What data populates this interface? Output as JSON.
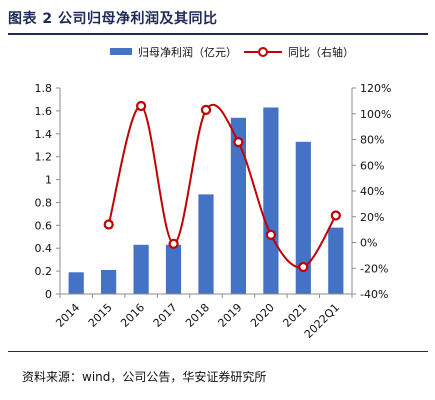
{
  "figure": {
    "title": "图表 2  公司归母净利润及其同比",
    "source": "资料来源：wind，公司公告，华安证券研究所"
  },
  "chart_data": {
    "type": "bar",
    "title": "",
    "categories": [
      "2014",
      "2015",
      "2016",
      "2017",
      "2018",
      "2019",
      "2020",
      "2021",
      "2022Q1"
    ],
    "series": [
      {
        "name": "归母净利润（亿元）",
        "type": "bar",
        "axis": "left",
        "color": "#4472c4",
        "values": [
          0.19,
          0.21,
          0.43,
          0.43,
          0.87,
          1.54,
          1.63,
          1.33,
          0.58
        ]
      },
      {
        "name": "同比（右轴）",
        "type": "line",
        "axis": "right",
        "color": "#c00000",
        "values": [
          null,
          14,
          106,
          -1,
          103,
          78,
          6,
          -19,
          21
        ]
      }
    ],
    "left_axis": {
      "ylim": [
        0,
        1.8
      ],
      "ticks": [
        "0",
        "0.2",
        "0.4",
        "0.6",
        "0.8",
        "1",
        "1.2",
        "1.4",
        "1.6",
        "1.8"
      ]
    },
    "right_axis": {
      "ylim": [
        -40,
        120
      ],
      "ticks": [
        "-40%",
        "-20%",
        "0%",
        "20%",
        "40%",
        "60%",
        "80%",
        "100%",
        "120%"
      ]
    },
    "legend_position": "top",
    "grid": false
  }
}
